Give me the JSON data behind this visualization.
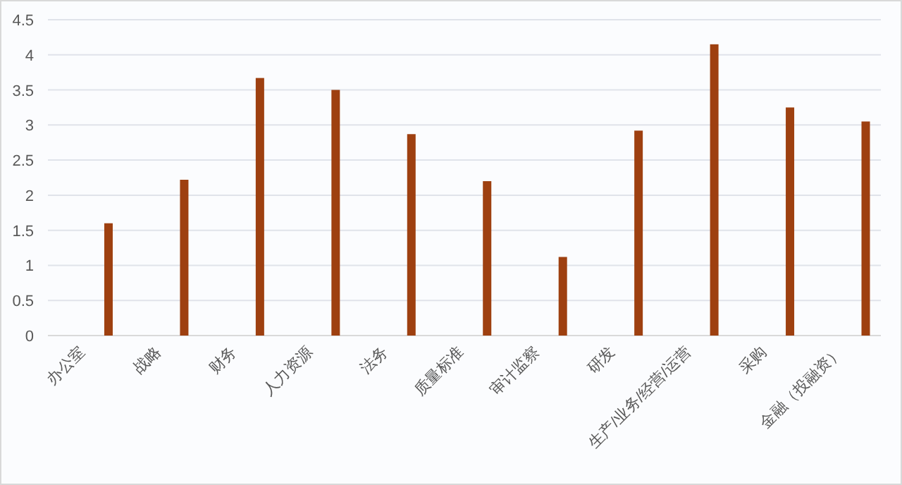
{
  "chart_data": {
    "type": "bar",
    "categories": [
      "办公室",
      "战略",
      "财务",
      "人力资源",
      "法务",
      "质量标准",
      "审计监察",
      "研发",
      "生产/业务/经营/运营",
      "采购",
      "金融（投融资）"
    ],
    "values": [
      1.6,
      2.22,
      3.67,
      3.5,
      2.87,
      2.2,
      1.12,
      2.92,
      4.15,
      3.25,
      3.05
    ],
    "color": "#9e4010",
    "ylim": [
      0,
      4.5
    ],
    "yticks": [
      0,
      0.5,
      1,
      1.5,
      2,
      2.5,
      3,
      3.5,
      4,
      4.5
    ],
    "grid": "y"
  }
}
